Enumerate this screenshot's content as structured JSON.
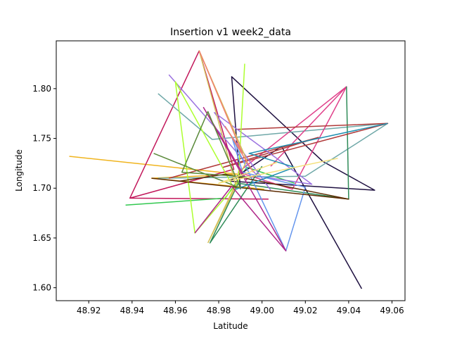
{
  "chart_data": {
    "type": "line",
    "title": "Insertion v1 week2_data",
    "xlabel": "Latitude",
    "ylabel": "Longitude",
    "xlim": [
      48.905,
      49.066
    ],
    "ylim": [
      1.587,
      1.848
    ],
    "xticks": [
      "48.92",
      "48.94",
      "48.96",
      "48.98",
      "49.00",
      "49.02",
      "49.04",
      "49.06"
    ],
    "yticks": [
      "1.60",
      "1.65",
      "1.70",
      "1.75",
      "1.80"
    ],
    "grid": false,
    "legend": "none",
    "series": [
      {
        "color": "#f0b41e",
        "points": [
          [
            48.911,
            1.732
          ],
          [
            48.989,
            1.714
          ],
          [
            48.949,
            1.71
          ],
          [
            49.001,
            1.699
          ]
        ]
      },
      {
        "color": "#c2185b",
        "points": [
          [
            48.939,
            1.69
          ],
          [
            48.971,
            1.838
          ],
          [
            48.987,
            1.719
          ],
          [
            48.939,
            1.69
          ],
          [
            49.003,
            1.689
          ]
        ]
      },
      {
        "color": "#32c850",
        "points": [
          [
            48.937,
            1.683
          ],
          [
            48.983,
            1.69
          ],
          [
            48.993,
            1.721
          ],
          [
            49.015,
            1.705
          ]
        ]
      },
      {
        "color": "#1e1040",
        "points": [
          [
            49.046,
            1.599
          ],
          [
            49.009,
            1.742
          ],
          [
            48.985,
            1.707
          ],
          [
            49.052,
            1.698
          ],
          [
            49.028,
            1.727
          ],
          [
            48.986,
            1.812
          ],
          [
            48.99,
            1.699
          ]
        ]
      },
      {
        "color": "#6fa8a8",
        "points": [
          [
            48.952,
            1.795
          ],
          [
            48.977,
            1.749
          ],
          [
            49.058,
            1.765
          ],
          [
            49.02,
            1.712
          ],
          [
            48.952,
            1.71
          ]
        ]
      },
      {
        "color": "#e0408a",
        "points": [
          [
            49.039,
            1.802
          ],
          [
            48.989,
            1.716
          ],
          [
            49.014,
            1.699
          ],
          [
            49.039,
            1.802
          ],
          [
            49.004,
            1.722
          ]
        ]
      },
      {
        "color": "#2e8b57",
        "points": [
          [
            49.039,
            1.802
          ],
          [
            49.04,
            1.689
          ],
          [
            48.989,
            1.705
          ],
          [
            48.976,
            1.645
          ],
          [
            49.0,
            1.722
          ]
        ]
      },
      {
        "color": "#b03a3a",
        "points": [
          [
            48.988,
            1.759
          ],
          [
            49.058,
            1.765
          ],
          [
            48.982,
            1.721
          ],
          [
            49.026,
            1.751
          ],
          [
            48.957,
            1.71
          ]
        ]
      },
      {
        "color": "#9b72e0",
        "points": [
          [
            48.957,
            1.814
          ],
          [
            48.998,
            1.712
          ],
          [
            49.023,
            1.704
          ],
          [
            48.978,
            1.776
          ],
          [
            49.004,
            1.698
          ]
        ]
      },
      {
        "color": "#adff2f",
        "points": [
          [
            48.992,
            1.825
          ],
          [
            48.989,
            1.706
          ],
          [
            48.969,
            1.655
          ],
          [
            48.96,
            1.807
          ],
          [
            48.986,
            1.704
          ]
        ]
      },
      {
        "color": "#6495ed",
        "points": [
          [
            49.011,
            1.637
          ],
          [
            48.986,
            1.752
          ],
          [
            48.991,
            1.716
          ],
          [
            49.02,
            1.701
          ],
          [
            49.011,
            1.637
          ]
        ]
      },
      {
        "color": "#d4c05a",
        "points": [
          [
            48.975,
            1.645
          ],
          [
            48.993,
            1.728
          ],
          [
            48.971,
            1.838
          ],
          [
            48.988,
            1.702
          ],
          [
            48.975,
            1.645
          ]
        ]
      },
      {
        "color": "#5c2a00",
        "points": [
          [
            48.949,
            1.71
          ],
          [
            49.04,
            1.689
          ],
          [
            48.983,
            1.714
          ],
          [
            48.962,
            1.707
          ]
        ]
      },
      {
        "color": "#f08070",
        "points": [
          [
            48.971,
            1.838
          ],
          [
            48.991,
            1.735
          ],
          [
            48.983,
            1.762
          ],
          [
            48.996,
            1.716
          ]
        ]
      },
      {
        "color": "#b0288a",
        "points": [
          [
            48.969,
            1.655
          ],
          [
            48.986,
            1.702
          ],
          [
            49.011,
            1.637
          ],
          [
            48.973,
            1.781
          ],
          [
            48.993,
            1.708
          ]
        ]
      },
      {
        "color": "#1f8fb0",
        "points": [
          [
            49.058,
            1.765
          ],
          [
            48.994,
            1.735
          ],
          [
            49.015,
            1.721
          ],
          [
            48.988,
            1.699
          ]
        ]
      },
      {
        "color": "#5a8a3a",
        "points": [
          [
            48.95,
            1.735
          ],
          [
            48.99,
            1.7
          ],
          [
            48.975,
            1.777
          ],
          [
            48.963,
            1.716
          ],
          [
            48.995,
            1.711
          ]
        ]
      },
      {
        "color": "#f4e07a",
        "points": [
          [
            49.035,
            1.73
          ],
          [
            48.98,
            1.705
          ],
          [
            49.007,
            1.726
          ]
        ]
      }
    ]
  }
}
